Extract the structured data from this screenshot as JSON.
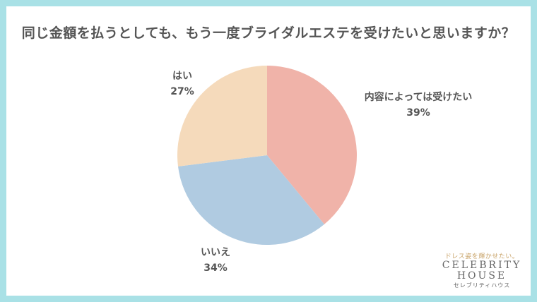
{
  "chart_data": {
    "type": "pie",
    "title": "同じ金額を払うとしても、もう一度ブライダルエステを受けたいと思いますか？",
    "slices": [
      {
        "label": "内容によっては受けたい",
        "value": 39,
        "value_label": "39%",
        "color": "#f0b3a9"
      },
      {
        "label": "いいえ",
        "value": 34,
        "value_label": "34%",
        "color": "#b0cbe1"
      },
      {
        "label": "はい",
        "value": 27,
        "value_label": "27%",
        "color": "#f5dabb"
      }
    ]
  },
  "logo": {
    "tagline": "ドレス姿を輝かせたい。",
    "brand_line1": "CELEBRITY",
    "brand_line2": "HOUSE",
    "brand_sub": "セレブリティハウス"
  },
  "colors": {
    "border": "#a9e1e6",
    "text": "#555555"
  }
}
